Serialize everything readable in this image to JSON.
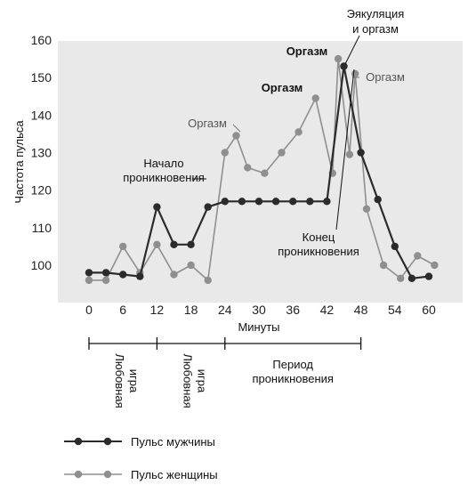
{
  "chart_data": {
    "type": "line",
    "xlabel": "Минуты",
    "ylabel": "Частота пульса",
    "xlim": [
      -8,
      62
    ],
    "ylim": [
      90,
      162
    ],
    "xticks": [
      0,
      6,
      12,
      18,
      24,
      30,
      36,
      42,
      48,
      54,
      60
    ],
    "yticks": [
      100,
      110,
      120,
      130,
      140,
      150,
      160
    ],
    "grid": false,
    "series": [
      {
        "name": "Пульс мужчины",
        "color": "#2b2b2b",
        "x": [
          0,
          3,
          6,
          9,
          12,
          15,
          18,
          21,
          24,
          27,
          30,
          33,
          36,
          39,
          42,
          45,
          48,
          51,
          54,
          57,
          60
        ],
        "y": [
          98,
          98,
          97.5,
          97,
          115.5,
          105.5,
          105.5,
          115.5,
          117,
          117,
          117,
          117,
          117,
          117,
          117,
          153,
          130,
          117.5,
          105,
          96.5,
          97
        ]
      },
      {
        "name": "Пульс женщины",
        "color": "#8f8f8f",
        "x": [
          0,
          3,
          6,
          9,
          12,
          15,
          18,
          21,
          24,
          26,
          28,
          31,
          34,
          37,
          40,
          43,
          44,
          46,
          47,
          49,
          52,
          55,
          58,
          61
        ],
        "y": [
          96,
          96,
          105,
          98,
          105.5,
          97.5,
          100,
          96,
          130,
          134.5,
          126,
          124.5,
          130,
          135.5,
          144.5,
          124.5,
          155,
          129.5,
          151,
          115,
          100,
          96.5,
          102.5,
          100
        ]
      }
    ],
    "annotations": [
      {
        "text": "Эякуляция",
        "style": "dark"
      },
      {
        "text": "и оргазм",
        "style": "dark"
      },
      {
        "text": "Оргазм",
        "style": "bold"
      },
      {
        "text": "Оргазм",
        "style": "grey"
      },
      {
        "text": "Оргазм",
        "style": "bold"
      },
      {
        "text": "Оргазм",
        "style": "grey"
      },
      {
        "text": "Начало",
        "style": "dark"
      },
      {
        "text": "проникновения",
        "style": "dark"
      },
      {
        "text": "Конец",
        "style": "dark"
      },
      {
        "text": "проникновения",
        "style": "dark"
      }
    ],
    "phases": [
      {
        "from": 0,
        "to": 12,
        "lines": [
          "Любовная",
          "игра"
        ],
        "vertical": true
      },
      {
        "from": 12,
        "to": 24,
        "lines": [
          "Любовная",
          "игра"
        ],
        "vertical": true
      },
      {
        "from": 24,
        "to": 48,
        "lines": [
          "Период",
          "проникновения"
        ],
        "vertical": false
      }
    ]
  },
  "legend": {
    "male": "Пульс мужчины",
    "female": "Пульс женщины"
  }
}
